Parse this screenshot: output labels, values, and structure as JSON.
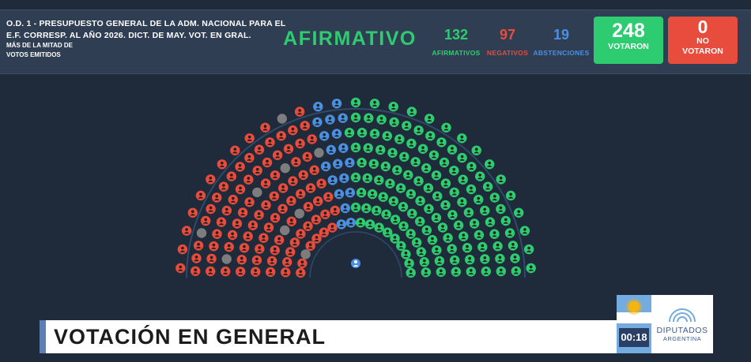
{
  "motion": {
    "line1": "O.D. 1 - PRESUPUESTO GENERAL DE LA ADM. NACIONAL PARA EL",
    "line2": "E.F. CORRESP. AL AÑO 2026. DICT. DE MAY. VOT. EN GRAL.",
    "majority_line1": "MÁS DE LA MITAD DE",
    "majority_line2": "VOTOS EMITIDOS"
  },
  "result": "AFIRMATIVO",
  "counts": {
    "afirmativos": {
      "value": "132",
      "label": "AFIRMATIVOS"
    },
    "negativos": {
      "value": "97",
      "label": "NEGATIVOS"
    },
    "abstenciones": {
      "value": "19",
      "label": "ABSTENCIONES"
    }
  },
  "totals": {
    "votaron": {
      "value": "248",
      "label": "VOTARON"
    },
    "no_votaron": {
      "value": "0",
      "label_line1": "NO",
      "label_line2": "VOTARON"
    }
  },
  "chamber": {
    "seats_per_row": [
      18,
      21,
      24,
      27,
      30,
      33,
      36,
      39,
      29
    ],
    "tally_by_category": {
      "afirmativo": 132,
      "negativo": 97,
      "abstencion": 19,
      "ausente": 9
    },
    "colors": {
      "afirmativo": "#2ecc71",
      "negativo": "#e74c3c",
      "abstencion": "#4a90e2",
      "ausente": "#7d7d7d",
      "presidencia": "#4a90e2"
    }
  },
  "lower_third": {
    "title": "VOTACIÓN EN GENERAL"
  },
  "timer": "00:18",
  "logo": {
    "line1": "DIPUTADOS",
    "line2": "ARGENTINA"
  },
  "colors": {
    "background": "#1f2b3a",
    "header": "#2f3e52",
    "accent_green": "#2ecc71",
    "accent_red": "#e74c3c",
    "accent_blue": "#4a90e2"
  }
}
